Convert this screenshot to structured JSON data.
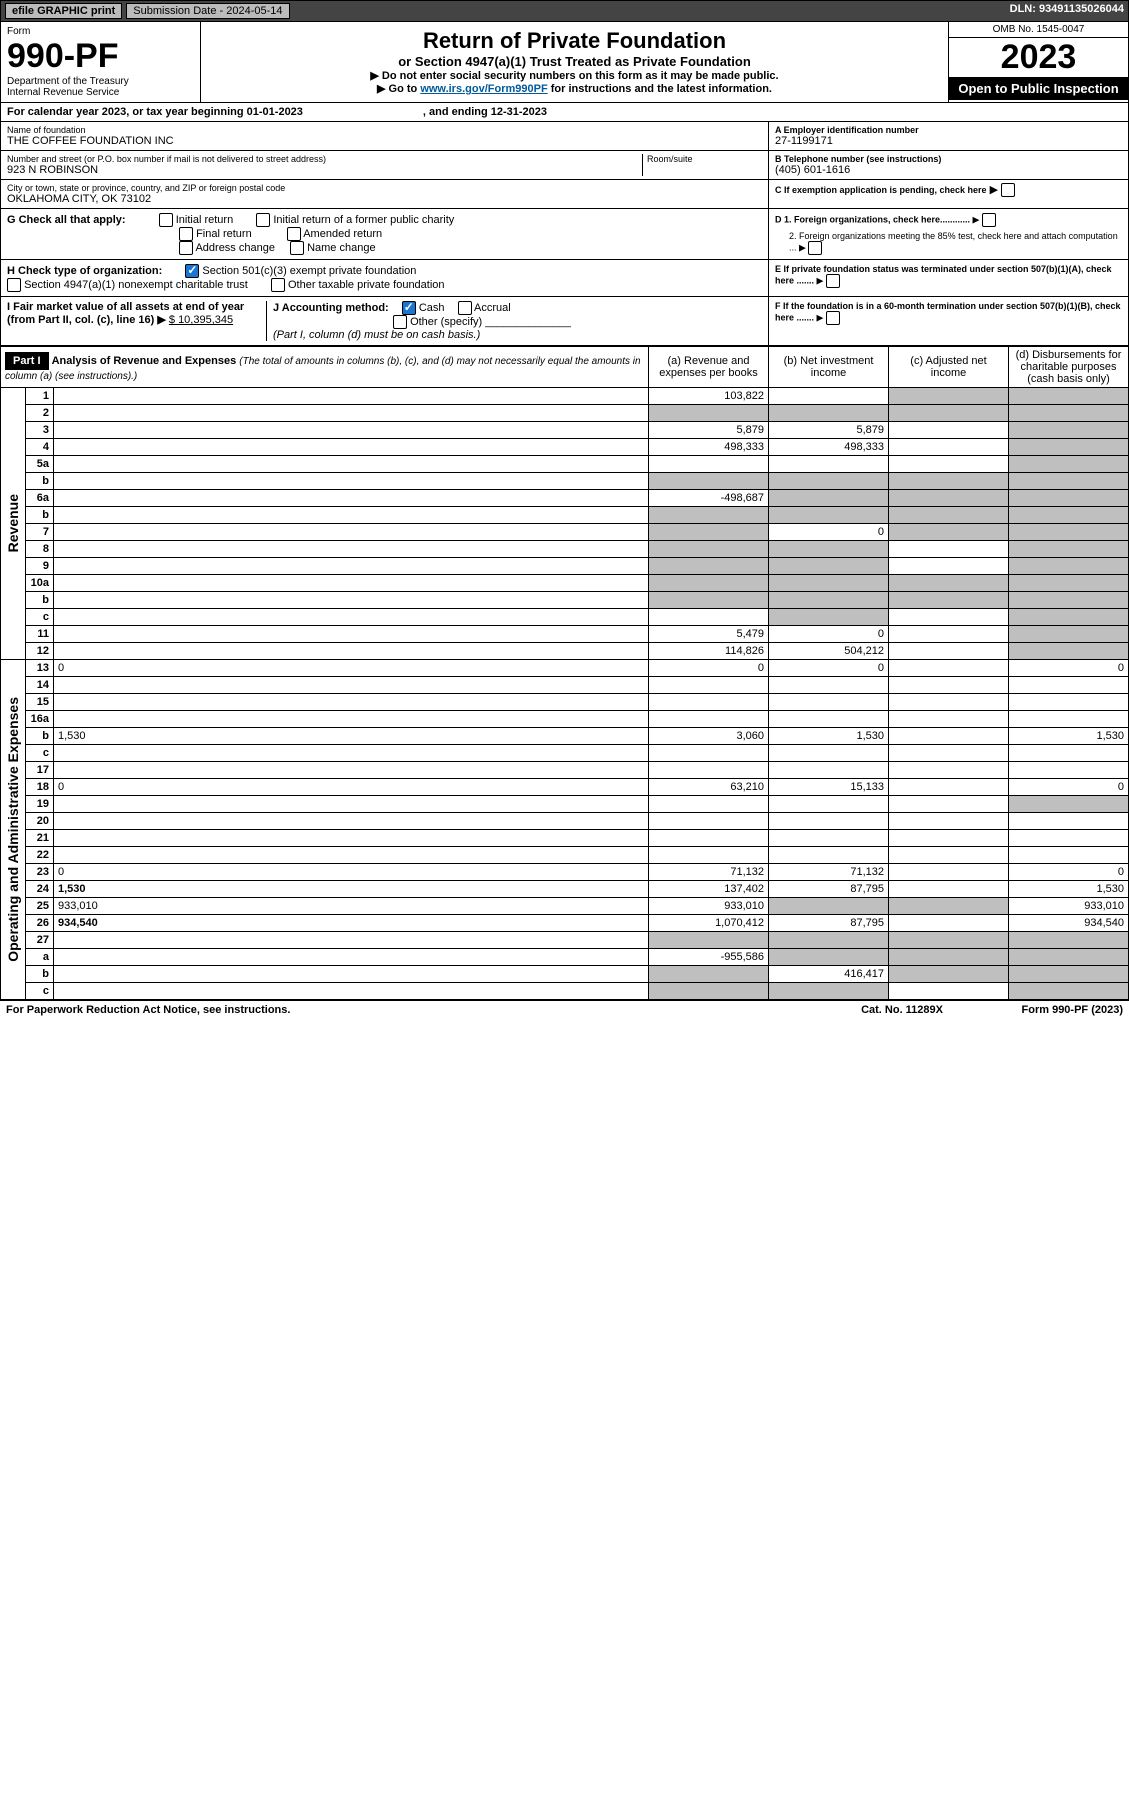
{
  "topbar": {
    "efile": "efile GRAPHIC print",
    "submission_label": "Submission Date - 2024-05-14",
    "dln": "DLN: 93491135026044"
  },
  "header": {
    "form_word": "Form",
    "form_num": "990-PF",
    "dept": "Department of the Treasury",
    "irs": "Internal Revenue Service",
    "title": "Return of Private Foundation",
    "subtitle": "or Section 4947(a)(1) Trust Treated as Private Foundation",
    "note1": "▶ Do not enter social security numbers on this form as it may be made public.",
    "note2_prefix": "▶ Go to ",
    "note2_link": "www.irs.gov/Form990PF",
    "note2_suffix": " for instructions and the latest information.",
    "omb": "OMB No. 1545-0047",
    "year": "2023",
    "open": "Open to Public Inspection"
  },
  "cal": {
    "text": "For calendar year 2023, or tax year beginning 01-01-2023",
    "ending": ", and ending 12-31-2023"
  },
  "id": {
    "name_lbl": "Name of foundation",
    "name": "THE COFFEE FOUNDATION INC",
    "addr_lbl": "Number and street (or P.O. box number if mail is not delivered to street address)",
    "room_lbl": "Room/suite",
    "addr": "923 N ROBINSON",
    "city_lbl": "City or town, state or province, country, and ZIP or foreign postal code",
    "city": "OKLAHOMA CITY, OK  73102",
    "a_lbl": "A Employer identification number",
    "a_val": "27-1199171",
    "b_lbl": "B Telephone number (see instructions)",
    "b_val": "(405) 601-1616",
    "c_lbl": "C If exemption application is pending, check here"
  },
  "g": {
    "lbl": "G Check all that apply:",
    "o1": "Initial return",
    "o2": "Initial return of a former public charity",
    "o3": "Final return",
    "o4": "Amended return",
    "o5": "Address change",
    "o6": "Name change"
  },
  "h": {
    "lbl": "H Check type of organization:",
    "o1": "Section 501(c)(3) exempt private foundation",
    "o2": "Section 4947(a)(1) nonexempt charitable trust",
    "o3": "Other taxable private foundation"
  },
  "d": {
    "d1": "D 1. Foreign organizations, check here............",
    "d2": "2. Foreign organizations meeting the 85% test, check here and attach computation ..."
  },
  "e": "E  If private foundation status was terminated under section 507(b)(1)(A), check here .......",
  "i": {
    "lbl": "I Fair market value of all assets at end of year (from Part II, col. (c), line 16) ▶",
    "val": "$  10,395,345"
  },
  "j": {
    "lbl": "J Accounting method:",
    "o1": "Cash",
    "o2": "Accrual",
    "o3": "Other (specify)",
    "note": "(Part I, column (d) must be on cash basis.)"
  },
  "f": "F  If the foundation is in a 60-month termination under section 507(b)(1)(B), check here .......",
  "part1": {
    "lbl": "Part I",
    "title": "Analysis of Revenue and Expenses",
    "note": "(The total of amounts in columns (b), (c), and (d) may not necessarily equal the amounts in column (a) (see instructions).)",
    "col_a": "(a)   Revenue and expenses per books",
    "col_b": "(b)   Net investment income",
    "col_c": "(c)   Adjusted net income",
    "col_d": "(d)   Disbursements for charitable purposes (cash basis only)"
  },
  "sections": {
    "rev": "Revenue",
    "exp": "Operating and Administrative Expenses"
  },
  "rows": {
    "r1": {
      "n": "1",
      "d": "",
      "a": "103,822",
      "b": "",
      "c": "",
      "sh": [
        "c",
        "d"
      ]
    },
    "r2": {
      "n": "2",
      "d": "",
      "a": "",
      "b": "",
      "c": "",
      "sh": [
        "a",
        "b",
        "c",
        "d"
      ]
    },
    "r3": {
      "n": "3",
      "d": "",
      "a": "5,879",
      "b": "5,879",
      "c": "",
      "sh": [
        "d"
      ]
    },
    "r4": {
      "n": "4",
      "d": "",
      "a": "498,333",
      "b": "498,333",
      "c": "",
      "sh": [
        "d"
      ]
    },
    "r5a": {
      "n": "5a",
      "d": "",
      "a": "",
      "b": "",
      "c": "",
      "sh": [
        "d"
      ]
    },
    "r5b": {
      "n": "b",
      "d": "",
      "a": "",
      "b": "",
      "c": "",
      "sh": [
        "a",
        "b",
        "c",
        "d"
      ]
    },
    "r6a": {
      "n": "6a",
      "d": "",
      "a": "-498,687",
      "b": "",
      "c": "",
      "sh": [
        "b",
        "c",
        "d"
      ]
    },
    "r6b": {
      "n": "b",
      "d": "",
      "a": "",
      "b": "",
      "c": "",
      "sh": [
        "a",
        "b",
        "c",
        "d"
      ]
    },
    "r7": {
      "n": "7",
      "d": "",
      "a": "",
      "b": "0",
      "c": "",
      "sh": [
        "a",
        "c",
        "d"
      ]
    },
    "r8": {
      "n": "8",
      "d": "",
      "a": "",
      "b": "",
      "c": "",
      "sh": [
        "a",
        "b",
        "d"
      ]
    },
    "r9": {
      "n": "9",
      "d": "",
      "a": "",
      "b": "",
      "c": "",
      "sh": [
        "a",
        "b",
        "d"
      ]
    },
    "r10a": {
      "n": "10a",
      "d": "",
      "a": "",
      "b": "",
      "c": "",
      "sh": [
        "a",
        "b",
        "c",
        "d"
      ]
    },
    "r10b": {
      "n": "b",
      "d": "",
      "a": "",
      "b": "",
      "c": "",
      "sh": [
        "a",
        "b",
        "c",
        "d"
      ]
    },
    "r10c": {
      "n": "c",
      "d": "",
      "a": "",
      "b": "",
      "c": "",
      "sh": [
        "b",
        "d"
      ]
    },
    "r11": {
      "n": "11",
      "d": "",
      "a": "5,479",
      "b": "0",
      "c": "",
      "sh": [
        "d"
      ]
    },
    "r12": {
      "n": "12",
      "d": "",
      "a": "114,826",
      "b": "504,212",
      "c": "",
      "sh": [
        "d"
      ],
      "bold": true
    },
    "r13": {
      "n": "13",
      "d": "0",
      "a": "0",
      "b": "0",
      "c": "",
      "sh": []
    },
    "r14": {
      "n": "14",
      "d": "",
      "a": "",
      "b": "",
      "c": "",
      "sh": []
    },
    "r15": {
      "n": "15",
      "d": "",
      "a": "",
      "b": "",
      "c": "",
      "sh": []
    },
    "r16a": {
      "n": "16a",
      "d": "",
      "a": "",
      "b": "",
      "c": "",
      "sh": []
    },
    "r16b": {
      "n": "b",
      "d": "1,530",
      "a": "3,060",
      "b": "1,530",
      "c": "",
      "sh": []
    },
    "r16c": {
      "n": "c",
      "d": "",
      "a": "",
      "b": "",
      "c": "",
      "sh": []
    },
    "r17": {
      "n": "17",
      "d": "",
      "a": "",
      "b": "",
      "c": "",
      "sh": []
    },
    "r18": {
      "n": "18",
      "d": "0",
      "a": "63,210",
      "b": "15,133",
      "c": "",
      "sh": []
    },
    "r19": {
      "n": "19",
      "d": "",
      "a": "",
      "b": "",
      "c": "",
      "sh": [
        "d"
      ]
    },
    "r20": {
      "n": "20",
      "d": "",
      "a": "",
      "b": "",
      "c": "",
      "sh": []
    },
    "r21": {
      "n": "21",
      "d": "",
      "a": "",
      "b": "",
      "c": "",
      "sh": []
    },
    "r22": {
      "n": "22",
      "d": "",
      "a": "",
      "b": "",
      "c": "",
      "sh": []
    },
    "r23": {
      "n": "23",
      "d": "0",
      "a": "71,132",
      "b": "71,132",
      "c": "",
      "sh": []
    },
    "r24": {
      "n": "24",
      "d": "1,530",
      "a": "137,402",
      "b": "87,795",
      "c": "",
      "sh": [],
      "bold": true
    },
    "r25": {
      "n": "25",
      "d": "933,010",
      "a": "933,010",
      "b": "",
      "c": "",
      "sh": [
        "b",
        "c"
      ]
    },
    "r26": {
      "n": "26",
      "d": "934,540",
      "a": "1,070,412",
      "b": "87,795",
      "c": "",
      "sh": [],
      "bold": true
    },
    "r27": {
      "n": "27",
      "d": "",
      "a": "",
      "b": "",
      "c": "",
      "sh": [
        "a",
        "b",
        "c",
        "d"
      ]
    },
    "r27a": {
      "n": "a",
      "d": "",
      "a": "-955,586",
      "b": "",
      "c": "",
      "sh": [
        "b",
        "c",
        "d"
      ],
      "bold": true
    },
    "r27b": {
      "n": "b",
      "d": "",
      "a": "",
      "b": "416,417",
      "c": "",
      "sh": [
        "a",
        "c",
        "d"
      ],
      "bold": true
    },
    "r27c": {
      "n": "c",
      "d": "",
      "a": "",
      "b": "",
      "c": "",
      "sh": [
        "a",
        "b",
        "d"
      ],
      "bold": true
    }
  },
  "footer": {
    "pra": "For Paperwork Reduction Act Notice, see instructions.",
    "cat": "Cat. No. 11289X",
    "form": "Form 990-PF (2023)"
  }
}
